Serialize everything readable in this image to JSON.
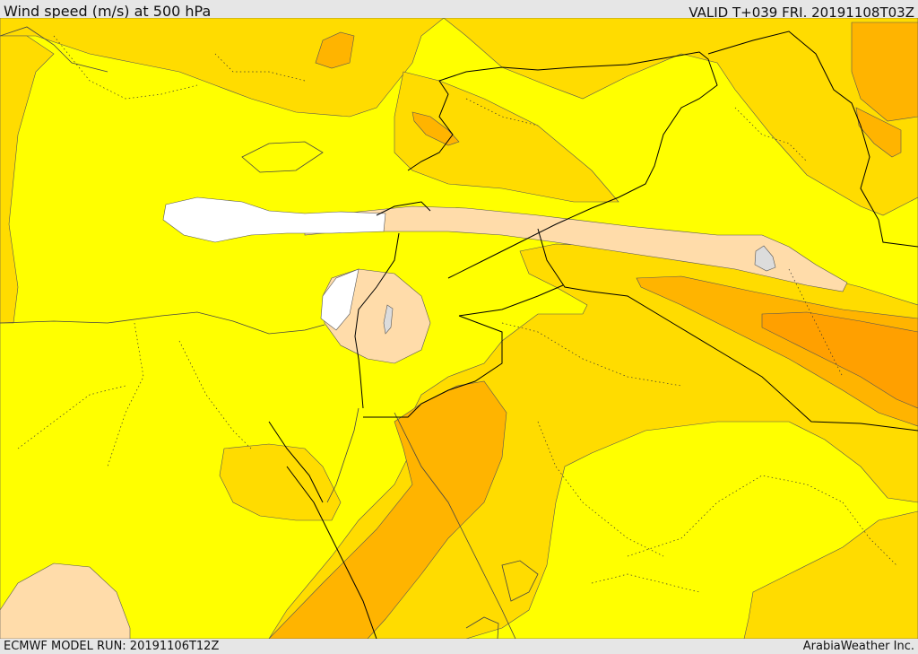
{
  "header": {
    "title": "Wind speed (m/s) at 500 hPa",
    "valid": "VALID T+039 FRI. 20191108T03Z"
  },
  "footer": {
    "model_run": "ECMWF MODEL RUN: 20191106T12Z",
    "credit": "ArabiaWeather Inc."
  },
  "map": {
    "colors": {
      "calm": "#ffffff",
      "light": "#ffdcaa",
      "low": "#ffff00",
      "moderate": "#ffdc00",
      "high": "#ffb400",
      "strong": "#ffa000",
      "lake": "#dcdcdc",
      "border": "#000000"
    }
  }
}
